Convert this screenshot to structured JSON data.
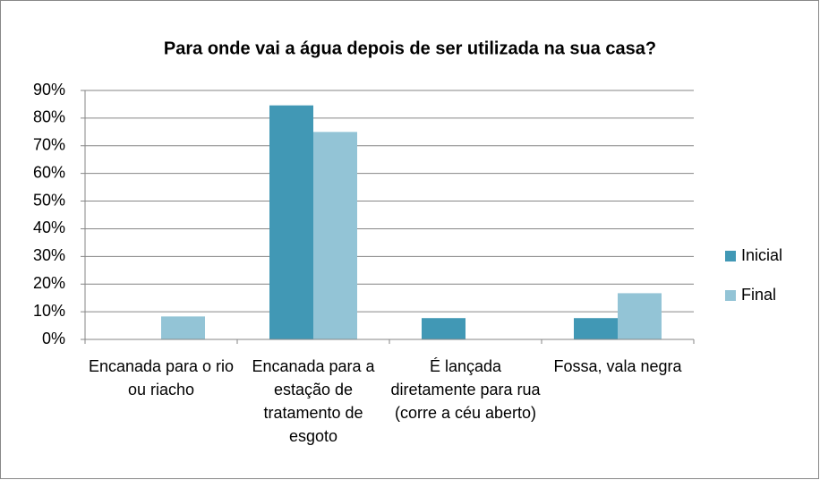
{
  "chart_data": {
    "type": "bar",
    "title": "Para onde vai a água depois de ser utilizada na sua casa?",
    "categories": [
      "Encanada para o rio ou riacho",
      "Encanada para a estação de tratamento de esgoto",
      "É lançada diretamente para rua (corre a céu aberto)",
      "Fossa, vala negra"
    ],
    "series": [
      {
        "name": "Inicial",
        "color": "#4198b5",
        "values": [
          0,
          84.6,
          7.7,
          7.7
        ]
      },
      {
        "name": "Final",
        "color": "#93c4d6",
        "values": [
          8.3,
          75,
          0,
          16.7
        ]
      }
    ],
    "ylim": [
      0,
      90
    ],
    "yticks": [
      {
        "value": 0,
        "label": "0%"
      },
      {
        "value": 10,
        "label": "10%"
      },
      {
        "value": 20,
        "label": "20%"
      },
      {
        "value": 30,
        "label": "30%"
      },
      {
        "value": 40,
        "label": "40%"
      },
      {
        "value": 50,
        "label": "50%"
      },
      {
        "value": 60,
        "label": "60%"
      },
      {
        "value": 70,
        "label": "70%"
      },
      {
        "value": 80,
        "label": "80%"
      },
      {
        "value": 90,
        "label": "90%"
      }
    ],
    "grid": true,
    "legend": "right"
  }
}
